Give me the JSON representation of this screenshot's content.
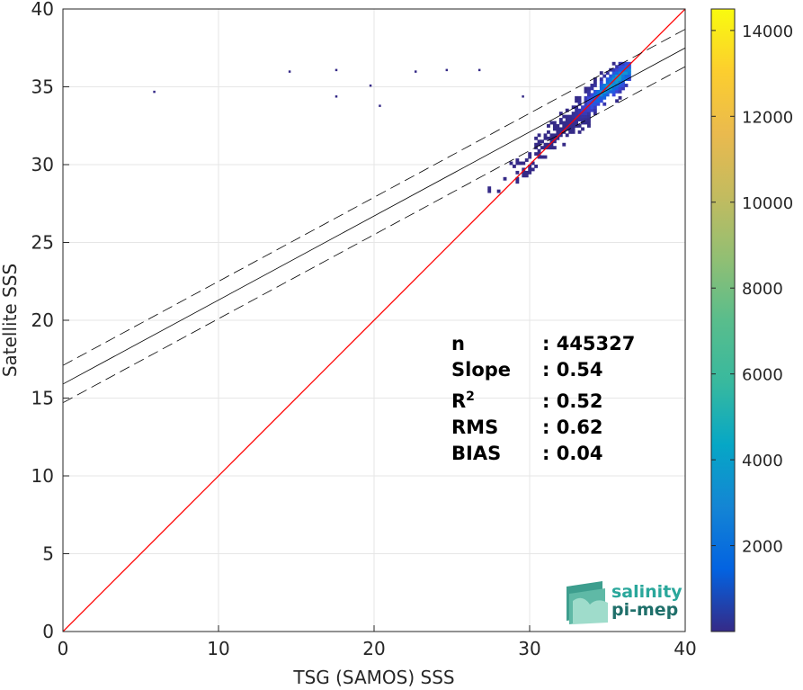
{
  "chart_data": {
    "type": "heatmap",
    "xlabel": "TSG (SAMOS) SSS",
    "ylabel": "Satellite SSS",
    "xlim": [
      0,
      40
    ],
    "ylim": [
      0,
      40
    ],
    "x_ticks": [
      0,
      10,
      20,
      30,
      40
    ],
    "y_ticks": [
      0,
      5,
      10,
      15,
      20,
      25,
      30,
      35,
      40
    ],
    "grid": true,
    "colorbar": {
      "range": [
        0,
        14500
      ],
      "ticks": [
        2000,
        4000,
        6000,
        8000,
        10000,
        12000,
        14000
      ],
      "colormap": "parula"
    },
    "identity_line": {
      "slope": 1,
      "intercept": 0,
      "color": "#ff0000"
    },
    "regression_line": {
      "slope": 0.54,
      "intercept": 15.9,
      "color": "#000000"
    },
    "confidence_band": {
      "offset": 1.2,
      "style": "dashed"
    },
    "density_cluster": {
      "x_range": [
        25.5,
        36.5
      ],
      "y_range": [
        28.2,
        36.5
      ],
      "peak": {
        "x": 35.0,
        "y": 35.0
      },
      "outliers": [
        {
          "x": 5.8,
          "y": 34.6
        },
        {
          "x": 14.5,
          "y": 35.9
        },
        {
          "x": 17.5,
          "y": 36.0
        },
        {
          "x": 17.5,
          "y": 34.3
        },
        {
          "x": 19.7,
          "y": 35.0
        },
        {
          "x": 20.3,
          "y": 33.7
        },
        {
          "x": 22.6,
          "y": 35.9
        },
        {
          "x": 24.6,
          "y": 36.0
        },
        {
          "x": 26.7,
          "y": 36.0
        },
        {
          "x": 29.5,
          "y": 34.3
        }
      ]
    },
    "stats": [
      {
        "label": "n",
        "sep": ": ",
        "value": "445327"
      },
      {
        "label": "Slope",
        "sep": ": ",
        "value": "0.54"
      },
      {
        "label": "R",
        "sup": "2",
        "sep": ": ",
        "value": "0.52"
      },
      {
        "label": "RMS",
        "sep": ": ",
        "value": "0.62"
      },
      {
        "label": "BIAS",
        "sep": ": ",
        "value": "0.04"
      }
    ]
  },
  "logo": {
    "line1": "salinity",
    "line2": "pi-mep",
    "color1": "#2aa79b",
    "color2": "#1f6f6a"
  }
}
